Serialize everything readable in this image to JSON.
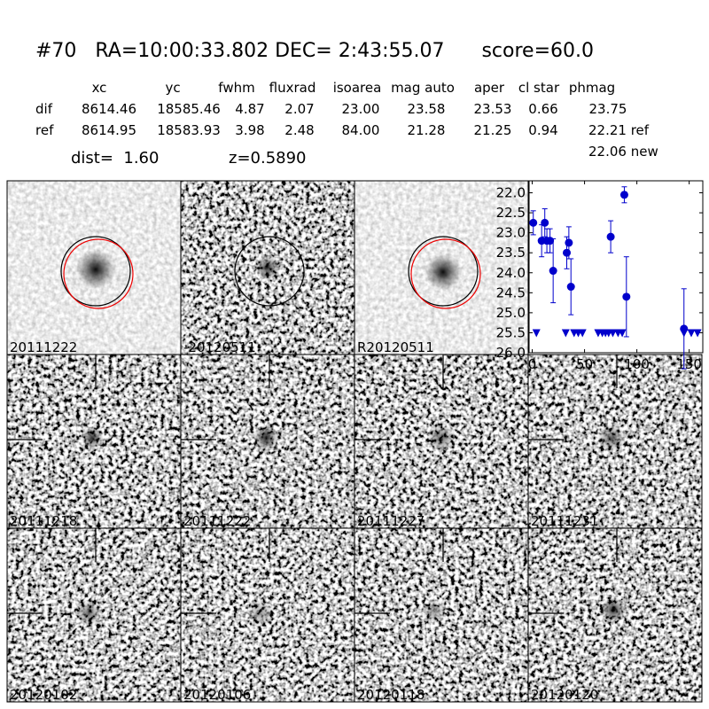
{
  "header": {
    "title": "#70   RA=10:00:33.802 DEC= 2:43:55.07      score=60.0"
  },
  "table": {
    "columns": [
      "xc",
      "yc",
      "fwhm",
      "fluxrad",
      "isoarea",
      "mag auto",
      "aper",
      "cl star",
      "phmag"
    ],
    "rows": [
      {
        "label": "dif",
        "cells": [
          "8614.46",
          "18585.46",
          "4.87",
          "2.07",
          "23.00",
          "23.58",
          "23.53",
          "0.66",
          "23.75"
        ]
      },
      {
        "label": "ref",
        "cells": [
          "8614.95",
          "18583.93",
          "3.98",
          "2.48",
          "84.00",
          "21.28",
          "21.25",
          "0.94",
          "22.21 ref"
        ]
      }
    ],
    "note": "22.06 new"
  },
  "dist": "dist=  1.60",
  "z": "z=0.5890",
  "stamps": [
    {
      "label": "20111222"
    },
    {
      "label": "-20120511"
    },
    {
      "label": "R20120511"
    },
    {
      "label": "20111218"
    },
    {
      "label": "20111222",
      "label_color": "#ff0000"
    },
    {
      "label": "20111227"
    },
    {
      "label": "20111231"
    },
    {
      "label": "20120102"
    },
    {
      "label": "20120106"
    },
    {
      "label": "20120118"
    },
    {
      "label": "20120120"
    }
  ],
  "lightcurve": {
    "type": "scatter",
    "color": "#0000cc",
    "xlim": [
      -3,
      163
    ],
    "ylim": [
      26.0,
      21.7
    ],
    "xticks": [
      0,
      50,
      100,
      150
    ],
    "yticks": [
      {
        "value": 22,
        "label": "22.0"
      },
      22.5,
      {
        "value": 23,
        "label": "23.0"
      },
      23.5,
      {
        "value": 24,
        "label": "24.0"
      },
      24.5,
      {
        "value": 25,
        "label": "25.0"
      },
      25.5,
      {
        "value": 26,
        "label": "26.0"
      }
    ],
    "detections": {
      "x": [
        1,
        9,
        12,
        14,
        17,
        20,
        33,
        35,
        37,
        75,
        88,
        90,
        145
      ],
      "y": [
        22.75,
        23.2,
        22.75,
        23.2,
        23.2,
        23.95,
        23.5,
        23.25,
        24.35,
        23.1,
        22.05,
        24.6,
        25.4
      ],
      "err": [
        0.3,
        0.4,
        0.35,
        0.3,
        0.3,
        0.8,
        0.4,
        0.4,
        0.7,
        0.4,
        0.2,
        1.0,
        1.0
      ]
    },
    "limits": {
      "x": [
        4,
        32,
        40,
        44,
        48,
        63,
        67,
        70,
        73,
        77,
        82,
        86,
        145,
        152,
        158
      ],
      "y": [
        25.5,
        25.5,
        25.5,
        25.5,
        25.5,
        25.5,
        25.5,
        25.5,
        25.5,
        25.5,
        25.5,
        25.5,
        25.5,
        25.5,
        25.5
      ]
    }
  }
}
